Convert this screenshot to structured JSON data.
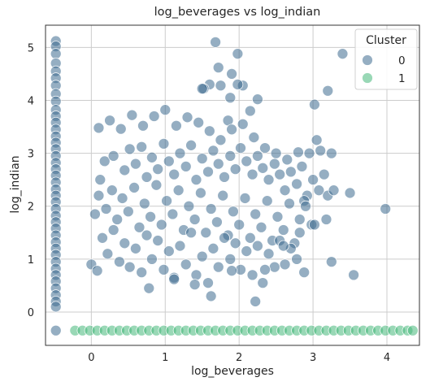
{
  "chart_data": {
    "type": "scatter",
    "title": "log_beverages vs log_indian",
    "xlabel": "log_beverages",
    "ylabel": "log_indian",
    "xlim": [
      -0.62,
      4.44
    ],
    "ylim": [
      -0.63,
      5.42
    ],
    "xticks": [
      0,
      1,
      2,
      3,
      4
    ],
    "xtick_labels": [
      "0",
      "1",
      "2",
      "3",
      "4"
    ],
    "yticks": [
      0,
      1,
      2,
      3,
      4,
      5
    ],
    "ytick_labels": [
      "0",
      "1",
      "2",
      "3",
      "4",
      "5"
    ],
    "grid": true,
    "legend": {
      "title": "Cluster",
      "placement": "top-right"
    },
    "series": [
      {
        "name": "0",
        "color": "#3e6b8f",
        "description": "points in the interior plus a dense column at x = -0.48",
        "points": [
          [
            -0.48,
            5.12
          ],
          [
            -0.48,
            5.02
          ],
          [
            -0.48,
            4.88
          ],
          [
            -0.48,
            4.7
          ],
          [
            -0.48,
            4.55
          ],
          [
            -0.48,
            4.42
          ],
          [
            -0.48,
            4.28
          ],
          [
            -0.48,
            4.12
          ],
          [
            -0.48,
            3.98
          ],
          [
            -0.48,
            3.82
          ],
          [
            -0.48,
            3.7
          ],
          [
            -0.48,
            3.58
          ],
          [
            -0.48,
            3.45
          ],
          [
            -0.48,
            3.32
          ],
          [
            -0.48,
            3.2
          ],
          [
            -0.48,
            3.08
          ],
          [
            -0.48,
            2.95
          ],
          [
            -0.48,
            2.82
          ],
          [
            -0.48,
            2.7
          ],
          [
            -0.48,
            2.58
          ],
          [
            -0.48,
            2.45
          ],
          [
            -0.48,
            2.32
          ],
          [
            -0.48,
            2.2
          ],
          [
            -0.48,
            2.08
          ],
          [
            -0.48,
            1.95
          ],
          [
            -0.48,
            1.82
          ],
          [
            -0.48,
            1.7
          ],
          [
            -0.48,
            1.58
          ],
          [
            -0.48,
            1.45
          ],
          [
            -0.48,
            1.32
          ],
          [
            -0.48,
            1.2
          ],
          [
            -0.48,
            1.08
          ],
          [
            -0.48,
            0.95
          ],
          [
            -0.48,
            0.82
          ],
          [
            -0.48,
            0.7
          ],
          [
            -0.48,
            0.58
          ],
          [
            -0.48,
            0.45
          ],
          [
            -0.48,
            0.32
          ],
          [
            -0.48,
            0.2
          ],
          [
            -0.48,
            0.1
          ],
          [
            -0.48,
            -0.35
          ],
          [
            1.68,
            5.1
          ],
          [
            1.98,
            4.88
          ],
          [
            3.4,
            4.88
          ],
          [
            1.72,
            4.62
          ],
          [
            1.9,
            4.5
          ],
          [
            1.6,
            4.3
          ],
          [
            1.75,
            4.28
          ],
          [
            2.05,
            4.28
          ],
          [
            1.52,
            4.22
          ],
          [
            1.98,
            4.3
          ],
          [
            3.2,
            4.18
          ],
          [
            2.25,
            4.02
          ],
          [
            1.5,
            4.22
          ],
          [
            2.15,
            3.8
          ],
          [
            1.85,
            3.62
          ],
          [
            3.02,
            3.92
          ],
          [
            1.88,
            4.05
          ],
          [
            0.1,
            3.48
          ],
          [
            0.25,
            3.62
          ],
          [
            0.4,
            3.46
          ],
          [
            0.55,
            3.72
          ],
          [
            0.7,
            3.52
          ],
          [
            0.85,
            3.7
          ],
          [
            1.0,
            3.82
          ],
          [
            1.15,
            3.52
          ],
          [
            1.3,
            3.68
          ],
          [
            1.45,
            3.58
          ],
          [
            1.6,
            3.42
          ],
          [
            1.75,
            3.25
          ],
          [
            1.9,
            3.45
          ],
          [
            2.05,
            3.55
          ],
          [
            2.2,
            3.3
          ],
          [
            2.35,
            3.1
          ],
          [
            2.5,
            3.0
          ],
          [
            2.65,
            2.88
          ],
          [
            2.8,
            3.02
          ],
          [
            2.95,
            3.0
          ],
          [
            3.1,
            3.05
          ],
          [
            3.25,
            3.0
          ],
          [
            3.05,
            3.25
          ],
          [
            0.12,
            2.5
          ],
          [
            0.18,
            2.85
          ],
          [
            0.3,
            2.95
          ],
          [
            0.45,
            2.68
          ],
          [
            0.52,
            3.08
          ],
          [
            0.6,
            2.8
          ],
          [
            0.68,
            3.12
          ],
          [
            0.75,
            2.55
          ],
          [
            0.82,
            2.92
          ],
          [
            0.9,
            2.7
          ],
          [
            0.98,
            3.18
          ],
          [
            1.05,
            2.85
          ],
          [
            1.12,
            2.6
          ],
          [
            1.2,
            3.0
          ],
          [
            1.28,
            2.75
          ],
          [
            1.35,
            3.15
          ],
          [
            1.42,
            2.5
          ],
          [
            1.5,
            2.9
          ],
          [
            1.58,
            2.65
          ],
          [
            1.65,
            3.05
          ],
          [
            1.72,
            2.8
          ],
          [
            1.8,
            2.55
          ],
          [
            1.88,
            2.95
          ],
          [
            1.95,
            2.7
          ],
          [
            2.02,
            3.1
          ],
          [
            2.1,
            2.85
          ],
          [
            2.18,
            2.6
          ],
          [
            2.25,
            2.95
          ],
          [
            2.32,
            2.72
          ],
          [
            2.4,
            2.5
          ],
          [
            2.48,
            2.8
          ],
          [
            2.55,
            2.6
          ],
          [
            2.62,
            2.3
          ],
          [
            2.7,
            2.65
          ],
          [
            2.78,
            2.42
          ],
          [
            2.85,
            2.75
          ],
          [
            2.92,
            2.2
          ],
          [
            3.0,
            2.5
          ],
          [
            3.08,
            2.3
          ],
          [
            3.15,
            2.6
          ],
          [
            3.2,
            2.2
          ],
          [
            3.28,
            2.3
          ],
          [
            2.88,
            2.1
          ],
          [
            0.1,
            2.2
          ],
          [
            0.2,
            1.95
          ],
          [
            0.28,
            2.3
          ],
          [
            0.35,
            1.75
          ],
          [
            0.42,
            2.15
          ],
          [
            0.5,
            1.9
          ],
          [
            0.58,
            2.35
          ],
          [
            0.65,
            1.6
          ],
          [
            0.72,
            2.05
          ],
          [
            0.8,
            1.8
          ],
          [
            0.88,
            2.4
          ],
          [
            0.95,
            1.65
          ],
          [
            1.02,
            2.1
          ],
          [
            1.1,
            1.85
          ],
          [
            1.18,
            2.3
          ],
          [
            1.25,
            1.55
          ],
          [
            1.32,
            2.0
          ],
          [
            1.4,
            1.75
          ],
          [
            1.48,
            2.25
          ],
          [
            1.55,
            1.5
          ],
          [
            1.62,
            1.95
          ],
          [
            1.7,
            1.7
          ],
          [
            1.78,
            2.2
          ],
          [
            1.85,
            1.45
          ],
          [
            1.92,
            1.9
          ],
          [
            2.0,
            1.65
          ],
          [
            2.08,
            2.15
          ],
          [
            2.15,
            1.4
          ],
          [
            2.22,
            1.85
          ],
          [
            2.3,
            1.6
          ],
          [
            2.38,
            2.1
          ],
          [
            2.45,
            1.35
          ],
          [
            2.52,
            1.8
          ],
          [
            2.6,
            1.55
          ],
          [
            2.68,
            2.05
          ],
          [
            2.75,
            1.3
          ],
          [
            2.82,
            1.75
          ],
          [
            2.9,
            2.0
          ],
          [
            2.98,
            1.65
          ],
          [
            0.05,
            1.85
          ],
          [
            3.5,
            2.25
          ],
          [
            3.98,
            1.95
          ],
          [
            0.15,
            1.4
          ],
          [
            0.22,
            1.1
          ],
          [
            0.3,
            1.55
          ],
          [
            0.38,
            0.95
          ],
          [
            0.45,
            1.3
          ],
          [
            0.52,
            0.85
          ],
          [
            0.6,
            1.2
          ],
          [
            0.68,
            0.75
          ],
          [
            0.75,
            1.45
          ],
          [
            0.82,
            1.0
          ],
          [
            0.9,
            1.35
          ],
          [
            0.98,
            0.8
          ],
          [
            1.05,
            1.15
          ],
          [
            1.12,
            0.65
          ],
          [
            1.2,
            1.25
          ],
          [
            1.28,
            0.9
          ],
          [
            1.35,
            1.5
          ],
          [
            1.42,
            0.7
          ],
          [
            1.5,
            1.05
          ],
          [
            1.58,
            0.55
          ],
          [
            1.65,
            1.2
          ],
          [
            1.72,
            0.85
          ],
          [
            1.8,
            1.4
          ],
          [
            1.88,
            1.0
          ],
          [
            1.95,
            1.3
          ],
          [
            2.02,
            0.8
          ],
          [
            2.1,
            1.15
          ],
          [
            2.18,
            0.7
          ],
          [
            2.25,
            1.25
          ],
          [
            2.32,
            0.55
          ],
          [
            2.4,
            1.1
          ],
          [
            2.48,
            0.85
          ],
          [
            2.55,
            1.35
          ],
          [
            2.62,
            0.9
          ],
          [
            2.7,
            1.2
          ],
          [
            2.78,
            1.0
          ],
          [
            2.88,
            0.75
          ],
          [
            3.25,
            0.95
          ],
          [
            3.55,
            0.7
          ],
          [
            0.0,
            0.9
          ],
          [
            0.08,
            0.78
          ],
          [
            0.78,
            0.45
          ],
          [
            1.12,
            0.62
          ],
          [
            1.4,
            0.52
          ],
          [
            1.62,
            0.3
          ],
          [
            1.9,
            0.78
          ],
          [
            2.22,
            0.2
          ],
          [
            2.35,
            0.8
          ],
          [
            2.6,
            1.25
          ],
          [
            2.82,
            1.5
          ],
          [
            3.02,
            1.65
          ],
          [
            3.18,
            1.75
          ]
        ]
      },
      {
        "name": "1",
        "color": "#45b87a",
        "description": "points along y = -0.35 across the full x range",
        "points": [
          [
            -0.22,
            -0.35
          ],
          [
            -0.12,
            -0.35
          ],
          [
            -0.02,
            -0.35
          ],
          [
            0.08,
            -0.35
          ],
          [
            0.18,
            -0.35
          ],
          [
            0.28,
            -0.35
          ],
          [
            0.38,
            -0.35
          ],
          [
            0.48,
            -0.35
          ],
          [
            0.58,
            -0.35
          ],
          [
            0.68,
            -0.35
          ],
          [
            0.78,
            -0.35
          ],
          [
            0.88,
            -0.35
          ],
          [
            0.98,
            -0.35
          ],
          [
            1.08,
            -0.35
          ],
          [
            1.18,
            -0.35
          ],
          [
            1.28,
            -0.35
          ],
          [
            1.38,
            -0.35
          ],
          [
            1.48,
            -0.35
          ],
          [
            1.58,
            -0.35
          ],
          [
            1.68,
            -0.35
          ],
          [
            1.78,
            -0.35
          ],
          [
            1.88,
            -0.35
          ],
          [
            1.98,
            -0.35
          ],
          [
            2.08,
            -0.35
          ],
          [
            2.18,
            -0.35
          ],
          [
            2.28,
            -0.35
          ],
          [
            2.38,
            -0.35
          ],
          [
            2.48,
            -0.35
          ],
          [
            2.58,
            -0.35
          ],
          [
            2.68,
            -0.35
          ],
          [
            2.78,
            -0.35
          ],
          [
            2.88,
            -0.35
          ],
          [
            2.98,
            -0.35
          ],
          [
            3.08,
            -0.35
          ],
          [
            3.18,
            -0.35
          ],
          [
            3.28,
            -0.35
          ],
          [
            3.38,
            -0.35
          ],
          [
            3.48,
            -0.35
          ],
          [
            3.58,
            -0.35
          ],
          [
            3.68,
            -0.35
          ],
          [
            3.78,
            -0.35
          ],
          [
            3.88,
            -0.35
          ],
          [
            3.98,
            -0.35
          ],
          [
            4.08,
            -0.35
          ],
          [
            4.18,
            -0.35
          ],
          [
            4.28,
            -0.35
          ],
          [
            4.35,
            -0.35
          ]
        ]
      }
    ]
  }
}
